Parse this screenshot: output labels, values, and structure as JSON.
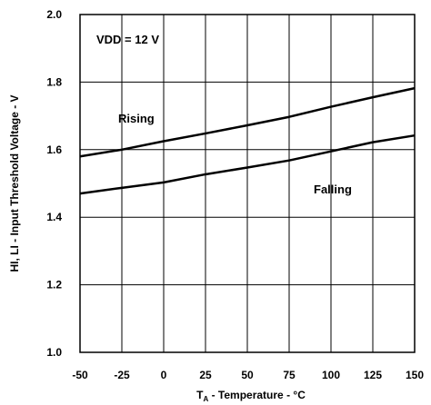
{
  "chart_data": {
    "type": "line",
    "xlabel_main": "T",
    "xlabel_sub": "A",
    "xlabel_rest": " - Temperature - °C",
    "ylabel": "HI, LI - Input Threshold  Voltage - V",
    "xlim": [
      -50,
      150
    ],
    "ylim": [
      1.0,
      2.0
    ],
    "xticks": [
      -50,
      -25,
      0,
      25,
      50,
      75,
      100,
      125,
      150
    ],
    "yticks": [
      1.0,
      1.2,
      1.4,
      1.6,
      1.8,
      2.0
    ],
    "xtick_labels": [
      "-50",
      "-25",
      "0",
      "25",
      "50",
      "75",
      "100",
      "125",
      "150"
    ],
    "ytick_labels": [
      "1.0",
      "1.2",
      "1.4",
      "1.6",
      "1.8",
      "2.0"
    ],
    "grid": true,
    "annotations": {
      "condition": "VDD = 12 V",
      "rising": "Rising",
      "falling": "Falling"
    },
    "series": [
      {
        "name": "Rising",
        "x": [
          -50,
          -25,
          0,
          25,
          50,
          75,
          100,
          125,
          150
        ],
        "y": [
          1.58,
          1.6,
          1.625,
          1.648,
          1.672,
          1.697,
          1.727,
          1.755,
          1.782
        ]
      },
      {
        "name": "Falling",
        "x": [
          -50,
          -25,
          0,
          25,
          50,
          75,
          100,
          125,
          150
        ],
        "y": [
          1.47,
          1.487,
          1.503,
          1.527,
          1.547,
          1.568,
          1.595,
          1.622,
          1.642
        ]
      }
    ]
  }
}
